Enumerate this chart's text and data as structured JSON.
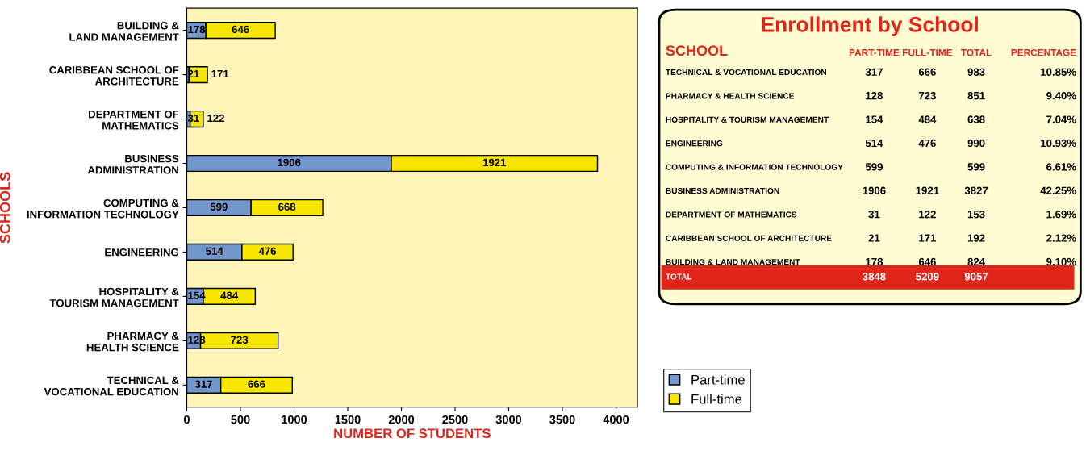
{
  "chart_data": [
    {
      "type": "bar",
      "orientation": "horizontal",
      "stacked": true,
      "xlabel": "NUMBER OF STUDENTS",
      "ylabel": "SCHOOLS",
      "categories": [
        "BUILDING &\nLAND MANAGEMENT",
        "CARIBBEAN SCHOOL OF\nARCHITECTURE",
        "DEPARTMENT OF\nMATHEMATICS",
        "BUSINESS\nADMINISTRATION",
        "COMPUTING &\nINFORMATION TECHNOLOGY",
        "ENGINEERING",
        "HOSPITALITY &\nTOURISM MANAGEMENT",
        "PHARMACY &\nHEALTH SCIENCE",
        "TECHNICAL &\nVOCATIONAL EDUCATION"
      ],
      "series": [
        {
          "name": "Part-time",
          "color": "#7396cc",
          "values": [
            178,
            21,
            31,
            1906,
            599,
            514,
            154,
            128,
            317
          ]
        },
        {
          "name": "Full-time",
          "color": "#f7e600",
          "values": [
            646,
            171,
            122,
            1921,
            668,
            476,
            484,
            723,
            666
          ]
        }
      ],
      "xlim": [
        0,
        4200
      ],
      "xticks": [
        0,
        500,
        1000,
        1500,
        2000,
        2500,
        3000,
        3500,
        4000
      ],
      "data_labels": true,
      "legend": "right",
      "grid": false
    },
    {
      "type": "other",
      "title": "Enrollment by School",
      "annotations": [
        "SCHOOL",
        "PART-TIME",
        "FULL-TIME",
        "TOTAL",
        "PERCENTAGE",
        "TECHNICAL & VOCATIONAL EDUCATION",
        "317",
        "666",
        "983",
        "10.85%",
        "PHARMACY & HEALTH SCIENCE",
        "128",
        "723",
        "851",
        "9.40%",
        "HOSPITALITY & TOURISM MANAGEMENT",
        "154",
        "484",
        "638",
        "7.04%",
        "ENGINEERING",
        "514",
        "476",
        "990",
        "10.93%",
        "COMPUTING & INFORMATION TECHNOLOGY",
        "599",
        null,
        "599",
        "6.61%",
        "BUSINESS ADMINISTRATION",
        "1906",
        "1921",
        "3827",
        "42.25%",
        "DEPARTMENT OF MATHEMATICS",
        "31",
        "122",
        "153",
        "1.69%",
        "CARIBBEAN SCHOOL OF ARCHITECTURE",
        "21",
        "171",
        "192",
        "2.12%",
        "BUILDING & LAND MANAGEMENT",
        "178",
        "646",
        "824",
        "9.10%",
        "TOTAL",
        "3848",
        "5209",
        "9057",
        null
      ]
    }
  ]
}
